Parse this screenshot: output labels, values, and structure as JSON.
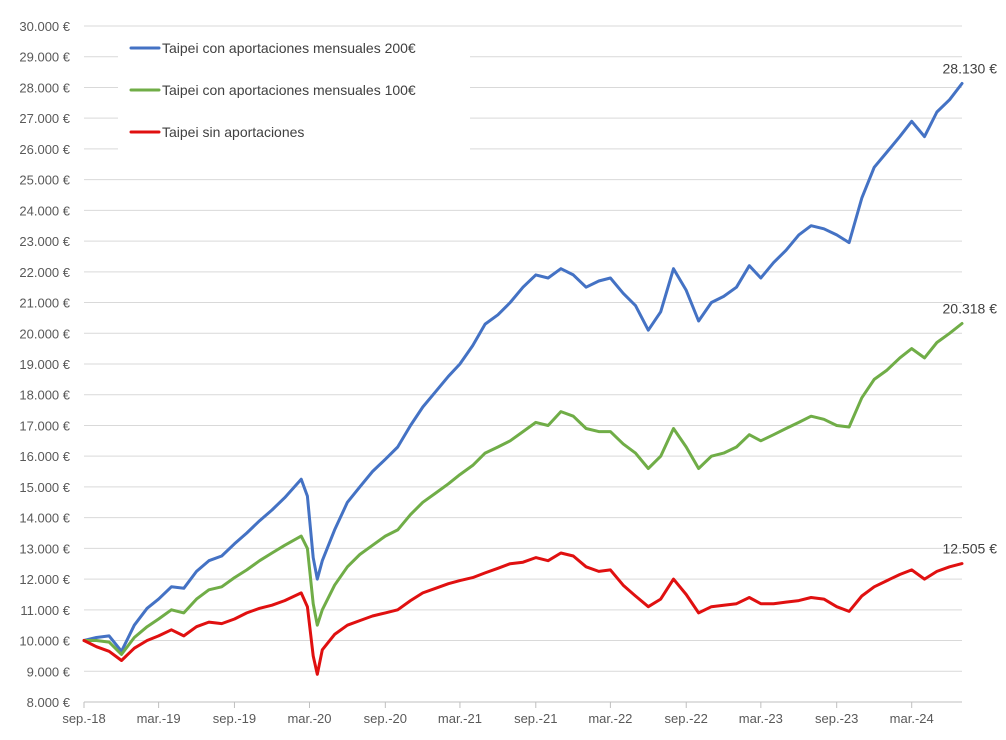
{
  "chart_data": {
    "type": "line",
    "ylim": [
      8000,
      30000
    ],
    "y_ticks": [
      {
        "value": 30000,
        "label": "30.000 €"
      },
      {
        "value": 29000,
        "label": "29.000 €"
      },
      {
        "value": 28000,
        "label": "28.000 €"
      },
      {
        "value": 27000,
        "label": "27.000 €"
      },
      {
        "value": 26000,
        "label": "26.000 €"
      },
      {
        "value": 25000,
        "label": "25.000 €"
      },
      {
        "value": 24000,
        "label": "24.000 €"
      },
      {
        "value": 23000,
        "label": "23.000 €"
      },
      {
        "value": 22000,
        "label": "22.000 €"
      },
      {
        "value": 21000,
        "label": "21.000 €"
      },
      {
        "value": 20000,
        "label": "20.000 €"
      },
      {
        "value": 19000,
        "label": "19.000 €"
      },
      {
        "value": 18000,
        "label": "18.000 €"
      },
      {
        "value": 17000,
        "label": "17.000 €"
      },
      {
        "value": 16000,
        "label": "16.000 €"
      },
      {
        "value": 15000,
        "label": "15.000 €"
      },
      {
        "value": 14000,
        "label": "14.000 €"
      },
      {
        "value": 13000,
        "label": "13.000 €"
      },
      {
        "value": 12000,
        "label": "12.000 €"
      },
      {
        "value": 11000,
        "label": "11.000 €"
      },
      {
        "value": 10000,
        "label": "10.000 €"
      },
      {
        "value": 9000,
        "label": "9.000 €"
      },
      {
        "value": 8000,
        "label": "8.000 €"
      }
    ],
    "x_range": [
      "2018-09",
      "2024-07"
    ],
    "x_ticks": [
      {
        "date": "2018-09",
        "label": "sep.-18"
      },
      {
        "date": "2019-03",
        "label": "mar.-19"
      },
      {
        "date": "2019-09",
        "label": "sep.-19"
      },
      {
        "date": "2020-03",
        "label": "mar.-20"
      },
      {
        "date": "2020-09",
        "label": "sep.-20"
      },
      {
        "date": "2021-03",
        "label": "mar.-21"
      },
      {
        "date": "2021-09",
        "label": "sep.-21"
      },
      {
        "date": "2022-03",
        "label": "mar.-22"
      },
      {
        "date": "2022-09",
        "label": "sep.-22"
      },
      {
        "date": "2023-03",
        "label": "mar.-23"
      },
      {
        "date": "2023-09",
        "label": "sep.-23"
      },
      {
        "date": "2024-03",
        "label": "mar.-24"
      }
    ],
    "grid": "horizontal",
    "legend_position": "top-left",
    "series": [
      {
        "name": "Taipei con aportaciones mensuales 200€",
        "color": "#4472c4",
        "end_label": "28.130 €",
        "points": [
          [
            "2018-09-01",
            10000
          ],
          [
            "2018-10-01",
            10100
          ],
          [
            "2018-11-01",
            10150
          ],
          [
            "2018-12-01",
            9650
          ],
          [
            "2019-01-01",
            10500
          ],
          [
            "2019-02-01",
            11050
          ],
          [
            "2019-03-01",
            11350
          ],
          [
            "2019-04-01",
            11750
          ],
          [
            "2019-05-01",
            11700
          ],
          [
            "2019-06-01",
            12250
          ],
          [
            "2019-07-01",
            12600
          ],
          [
            "2019-08-01",
            12750
          ],
          [
            "2019-09-01",
            13150
          ],
          [
            "2019-10-01",
            13500
          ],
          [
            "2019-11-01",
            13900
          ],
          [
            "2019-12-01",
            14250
          ],
          [
            "2020-01-01",
            14650
          ],
          [
            "2020-02-10",
            15250
          ],
          [
            "2020-02-25",
            14700
          ],
          [
            "2020-03-10",
            12700
          ],
          [
            "2020-03-20",
            12000
          ],
          [
            "2020-04-01",
            12600
          ],
          [
            "2020-05-01",
            13600
          ],
          [
            "2020-06-01",
            14500
          ],
          [
            "2020-07-01",
            15000
          ],
          [
            "2020-08-01",
            15500
          ],
          [
            "2020-09-01",
            15900
          ],
          [
            "2020-10-01",
            16300
          ],
          [
            "2020-11-01",
            17000
          ],
          [
            "2020-12-01",
            17600
          ],
          [
            "2021-01-01",
            18100
          ],
          [
            "2021-02-01",
            18600
          ],
          [
            "2021-03-01",
            19000
          ],
          [
            "2021-04-01",
            19600
          ],
          [
            "2021-05-01",
            20300
          ],
          [
            "2021-06-01",
            20600
          ],
          [
            "2021-07-01",
            21000
          ],
          [
            "2021-08-01",
            21500
          ],
          [
            "2021-09-01",
            21900
          ],
          [
            "2021-10-01",
            21800
          ],
          [
            "2021-11-01",
            22100
          ],
          [
            "2021-12-01",
            21900
          ],
          [
            "2022-01-01",
            21500
          ],
          [
            "2022-02-01",
            21700
          ],
          [
            "2022-03-01",
            21800
          ],
          [
            "2022-04-01",
            21300
          ],
          [
            "2022-05-01",
            20900
          ],
          [
            "2022-06-01",
            20100
          ],
          [
            "2022-07-01",
            20700
          ],
          [
            "2022-08-01",
            22100
          ],
          [
            "2022-09-01",
            21400
          ],
          [
            "2022-10-01",
            20400
          ],
          [
            "2022-11-01",
            21000
          ],
          [
            "2022-12-01",
            21200
          ],
          [
            "2023-01-01",
            21500
          ],
          [
            "2023-02-01",
            22200
          ],
          [
            "2023-03-01",
            21800
          ],
          [
            "2023-04-01",
            22300
          ],
          [
            "2023-05-01",
            22700
          ],
          [
            "2023-06-01",
            23200
          ],
          [
            "2023-07-01",
            23500
          ],
          [
            "2023-08-01",
            23400
          ],
          [
            "2023-09-01",
            23200
          ],
          [
            "2023-10-01",
            22950
          ],
          [
            "2023-11-01",
            24400
          ],
          [
            "2023-12-01",
            25400
          ],
          [
            "2024-01-01",
            25900
          ],
          [
            "2024-02-01",
            26400
          ],
          [
            "2024-03-01",
            26900
          ],
          [
            "2024-04-01",
            26400
          ],
          [
            "2024-05-01",
            27200
          ],
          [
            "2024-06-01",
            27600
          ],
          [
            "2024-07-01",
            28130
          ]
        ]
      },
      {
        "name": "Taipei con aportaciones mensuales 100€",
        "color": "#70ad47",
        "end_label": "20.318 €",
        "points": [
          [
            "2018-09-01",
            10000
          ],
          [
            "2018-10-01",
            10000
          ],
          [
            "2018-11-01",
            9950
          ],
          [
            "2018-12-01",
            9550
          ],
          [
            "2019-01-01",
            10100
          ],
          [
            "2019-02-01",
            10450
          ],
          [
            "2019-03-01",
            10700
          ],
          [
            "2019-04-01",
            11000
          ],
          [
            "2019-05-01",
            10900
          ],
          [
            "2019-06-01",
            11350
          ],
          [
            "2019-07-01",
            11650
          ],
          [
            "2019-08-01",
            11750
          ],
          [
            "2019-09-01",
            12050
          ],
          [
            "2019-10-01",
            12300
          ],
          [
            "2019-11-01",
            12600
          ],
          [
            "2019-12-01",
            12850
          ],
          [
            "2020-01-01",
            13100
          ],
          [
            "2020-02-10",
            13400
          ],
          [
            "2020-02-25",
            13000
          ],
          [
            "2020-03-10",
            11200
          ],
          [
            "2020-03-20",
            10500
          ],
          [
            "2020-04-01",
            11000
          ],
          [
            "2020-05-01",
            11800
          ],
          [
            "2020-06-01",
            12400
          ],
          [
            "2020-07-01",
            12800
          ],
          [
            "2020-08-01",
            13100
          ],
          [
            "2020-09-01",
            13400
          ],
          [
            "2020-10-01",
            13600
          ],
          [
            "2020-11-01",
            14100
          ],
          [
            "2020-12-01",
            14500
          ],
          [
            "2021-01-01",
            14800
          ],
          [
            "2021-02-01",
            15100
          ],
          [
            "2021-03-01",
            15400
          ],
          [
            "2021-04-01",
            15700
          ],
          [
            "2021-05-01",
            16100
          ],
          [
            "2021-06-01",
            16300
          ],
          [
            "2021-07-01",
            16500
          ],
          [
            "2021-08-01",
            16800
          ],
          [
            "2021-09-01",
            17100
          ],
          [
            "2021-10-01",
            17000
          ],
          [
            "2021-11-01",
            17450
          ],
          [
            "2021-12-01",
            17300
          ],
          [
            "2022-01-01",
            16900
          ],
          [
            "2022-02-01",
            16800
          ],
          [
            "2022-03-01",
            16800
          ],
          [
            "2022-04-01",
            16400
          ],
          [
            "2022-05-01",
            16100
          ],
          [
            "2022-06-01",
            15600
          ],
          [
            "2022-07-01",
            16000
          ],
          [
            "2022-08-01",
            16900
          ],
          [
            "2022-09-01",
            16300
          ],
          [
            "2022-10-01",
            15600
          ],
          [
            "2022-11-01",
            16000
          ],
          [
            "2022-12-01",
            16100
          ],
          [
            "2023-01-01",
            16300
          ],
          [
            "2023-02-01",
            16700
          ],
          [
            "2023-03-01",
            16500
          ],
          [
            "2023-04-01",
            16700
          ],
          [
            "2023-05-01",
            16900
          ],
          [
            "2023-06-01",
            17100
          ],
          [
            "2023-07-01",
            17300
          ],
          [
            "2023-08-01",
            17200
          ],
          [
            "2023-09-01",
            17000
          ],
          [
            "2023-10-01",
            16950
          ],
          [
            "2023-11-01",
            17900
          ],
          [
            "2023-12-01",
            18500
          ],
          [
            "2024-01-01",
            18800
          ],
          [
            "2024-02-01",
            19200
          ],
          [
            "2024-03-01",
            19500
          ],
          [
            "2024-04-01",
            19200
          ],
          [
            "2024-05-01",
            19700
          ],
          [
            "2024-06-01",
            20000
          ],
          [
            "2024-07-01",
            20318
          ]
        ]
      },
      {
        "name": "Taipei sin aportaciones",
        "color": "#e01010",
        "end_label": "12.505 €",
        "points": [
          [
            "2018-09-01",
            10000
          ],
          [
            "2018-10-01",
            9800
          ],
          [
            "2018-11-01",
            9650
          ],
          [
            "2018-12-01",
            9350
          ],
          [
            "2019-01-01",
            9750
          ],
          [
            "2019-02-01",
            10000
          ],
          [
            "2019-03-01",
            10150
          ],
          [
            "2019-04-01",
            10350
          ],
          [
            "2019-05-01",
            10150
          ],
          [
            "2019-06-01",
            10450
          ],
          [
            "2019-07-01",
            10600
          ],
          [
            "2019-08-01",
            10550
          ],
          [
            "2019-09-01",
            10700
          ],
          [
            "2019-10-01",
            10900
          ],
          [
            "2019-11-01",
            11050
          ],
          [
            "2019-12-01",
            11150
          ],
          [
            "2020-01-01",
            11300
          ],
          [
            "2020-02-10",
            11550
          ],
          [
            "2020-02-25",
            11100
          ],
          [
            "2020-03-10",
            9500
          ],
          [
            "2020-03-20",
            8900
          ],
          [
            "2020-04-01",
            9700
          ],
          [
            "2020-05-01",
            10200
          ],
          [
            "2020-06-01",
            10500
          ],
          [
            "2020-07-01",
            10650
          ],
          [
            "2020-08-01",
            10800
          ],
          [
            "2020-09-01",
            10900
          ],
          [
            "2020-10-01",
            11000
          ],
          [
            "2020-11-01",
            11300
          ],
          [
            "2020-12-01",
            11550
          ],
          [
            "2021-01-01",
            11700
          ],
          [
            "2021-02-01",
            11850
          ],
          [
            "2021-03-01",
            11950
          ],
          [
            "2021-04-01",
            12050
          ],
          [
            "2021-05-01",
            12200
          ],
          [
            "2021-06-01",
            12350
          ],
          [
            "2021-07-01",
            12500
          ],
          [
            "2021-08-01",
            12550
          ],
          [
            "2021-09-01",
            12700
          ],
          [
            "2021-10-01",
            12600
          ],
          [
            "2021-11-01",
            12850
          ],
          [
            "2021-12-01",
            12750
          ],
          [
            "2022-01-01",
            12400
          ],
          [
            "2022-02-01",
            12250
          ],
          [
            "2022-03-01",
            12300
          ],
          [
            "2022-04-01",
            11800
          ],
          [
            "2022-05-01",
            11450
          ],
          [
            "2022-06-01",
            11100
          ],
          [
            "2022-07-01",
            11350
          ],
          [
            "2022-08-01",
            12000
          ],
          [
            "2022-09-01",
            11500
          ],
          [
            "2022-10-01",
            10900
          ],
          [
            "2022-11-01",
            11100
          ],
          [
            "2022-12-01",
            11150
          ],
          [
            "2023-01-01",
            11200
          ],
          [
            "2023-02-01",
            11400
          ],
          [
            "2023-03-01",
            11200
          ],
          [
            "2023-04-01",
            11200
          ],
          [
            "2023-05-01",
            11250
          ],
          [
            "2023-06-01",
            11300
          ],
          [
            "2023-07-01",
            11400
          ],
          [
            "2023-08-01",
            11350
          ],
          [
            "2023-09-01",
            11100
          ],
          [
            "2023-10-01",
            10950
          ],
          [
            "2023-11-01",
            11450
          ],
          [
            "2023-12-01",
            11750
          ],
          [
            "2024-01-01",
            11950
          ],
          [
            "2024-02-01",
            12150
          ],
          [
            "2024-03-01",
            12300
          ],
          [
            "2024-04-01",
            12000
          ],
          [
            "2024-05-01",
            12250
          ],
          [
            "2024-06-01",
            12400
          ],
          [
            "2024-07-01",
            12505
          ]
        ]
      }
    ]
  }
}
